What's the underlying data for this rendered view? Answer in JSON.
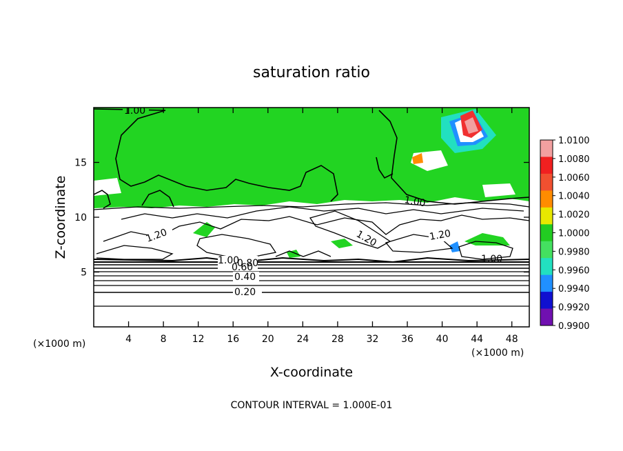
{
  "chart_data": {
    "type": "heatmap",
    "title": "saturation ratio",
    "xlabel": "X-coordinate",
    "ylabel": "Z-coordinate",
    "x_unit": "(×1000 m)",
    "y_unit": "(×1000 m)",
    "xlim": [
      0,
      50
    ],
    "ylim": [
      0,
      20
    ],
    "x_ticks": [
      4,
      8,
      12,
      16,
      20,
      24,
      28,
      32,
      36,
      40,
      44,
      48
    ],
    "y_ticks": [
      5,
      10,
      15
    ],
    "colorbar": {
      "values": [
        "1.0100",
        "1.0080",
        "1.0060",
        "1.0040",
        "1.0020",
        "1.0000",
        "0.9980",
        "0.9960",
        "0.9940",
        "0.9920",
        "0.9900"
      ],
      "colors": [
        "#f2a0a0",
        "#f02020",
        "#f05030",
        "#ff8c00",
        "#e8e800",
        "#22cc22",
        "#44e060",
        "#22e0c0",
        "#2090ff",
        "#1010d0",
        "#7010b0"
      ]
    },
    "contour_labels": [
      "1.00",
      "1.00",
      "1.20",
      "1.20",
      "1.20",
      "1.00",
      "1.00",
      "0.80",
      "0.60",
      "0.40",
      "0.20"
    ],
    "footnote": "CONTOUR INTERVAL = 1.000E-01"
  }
}
